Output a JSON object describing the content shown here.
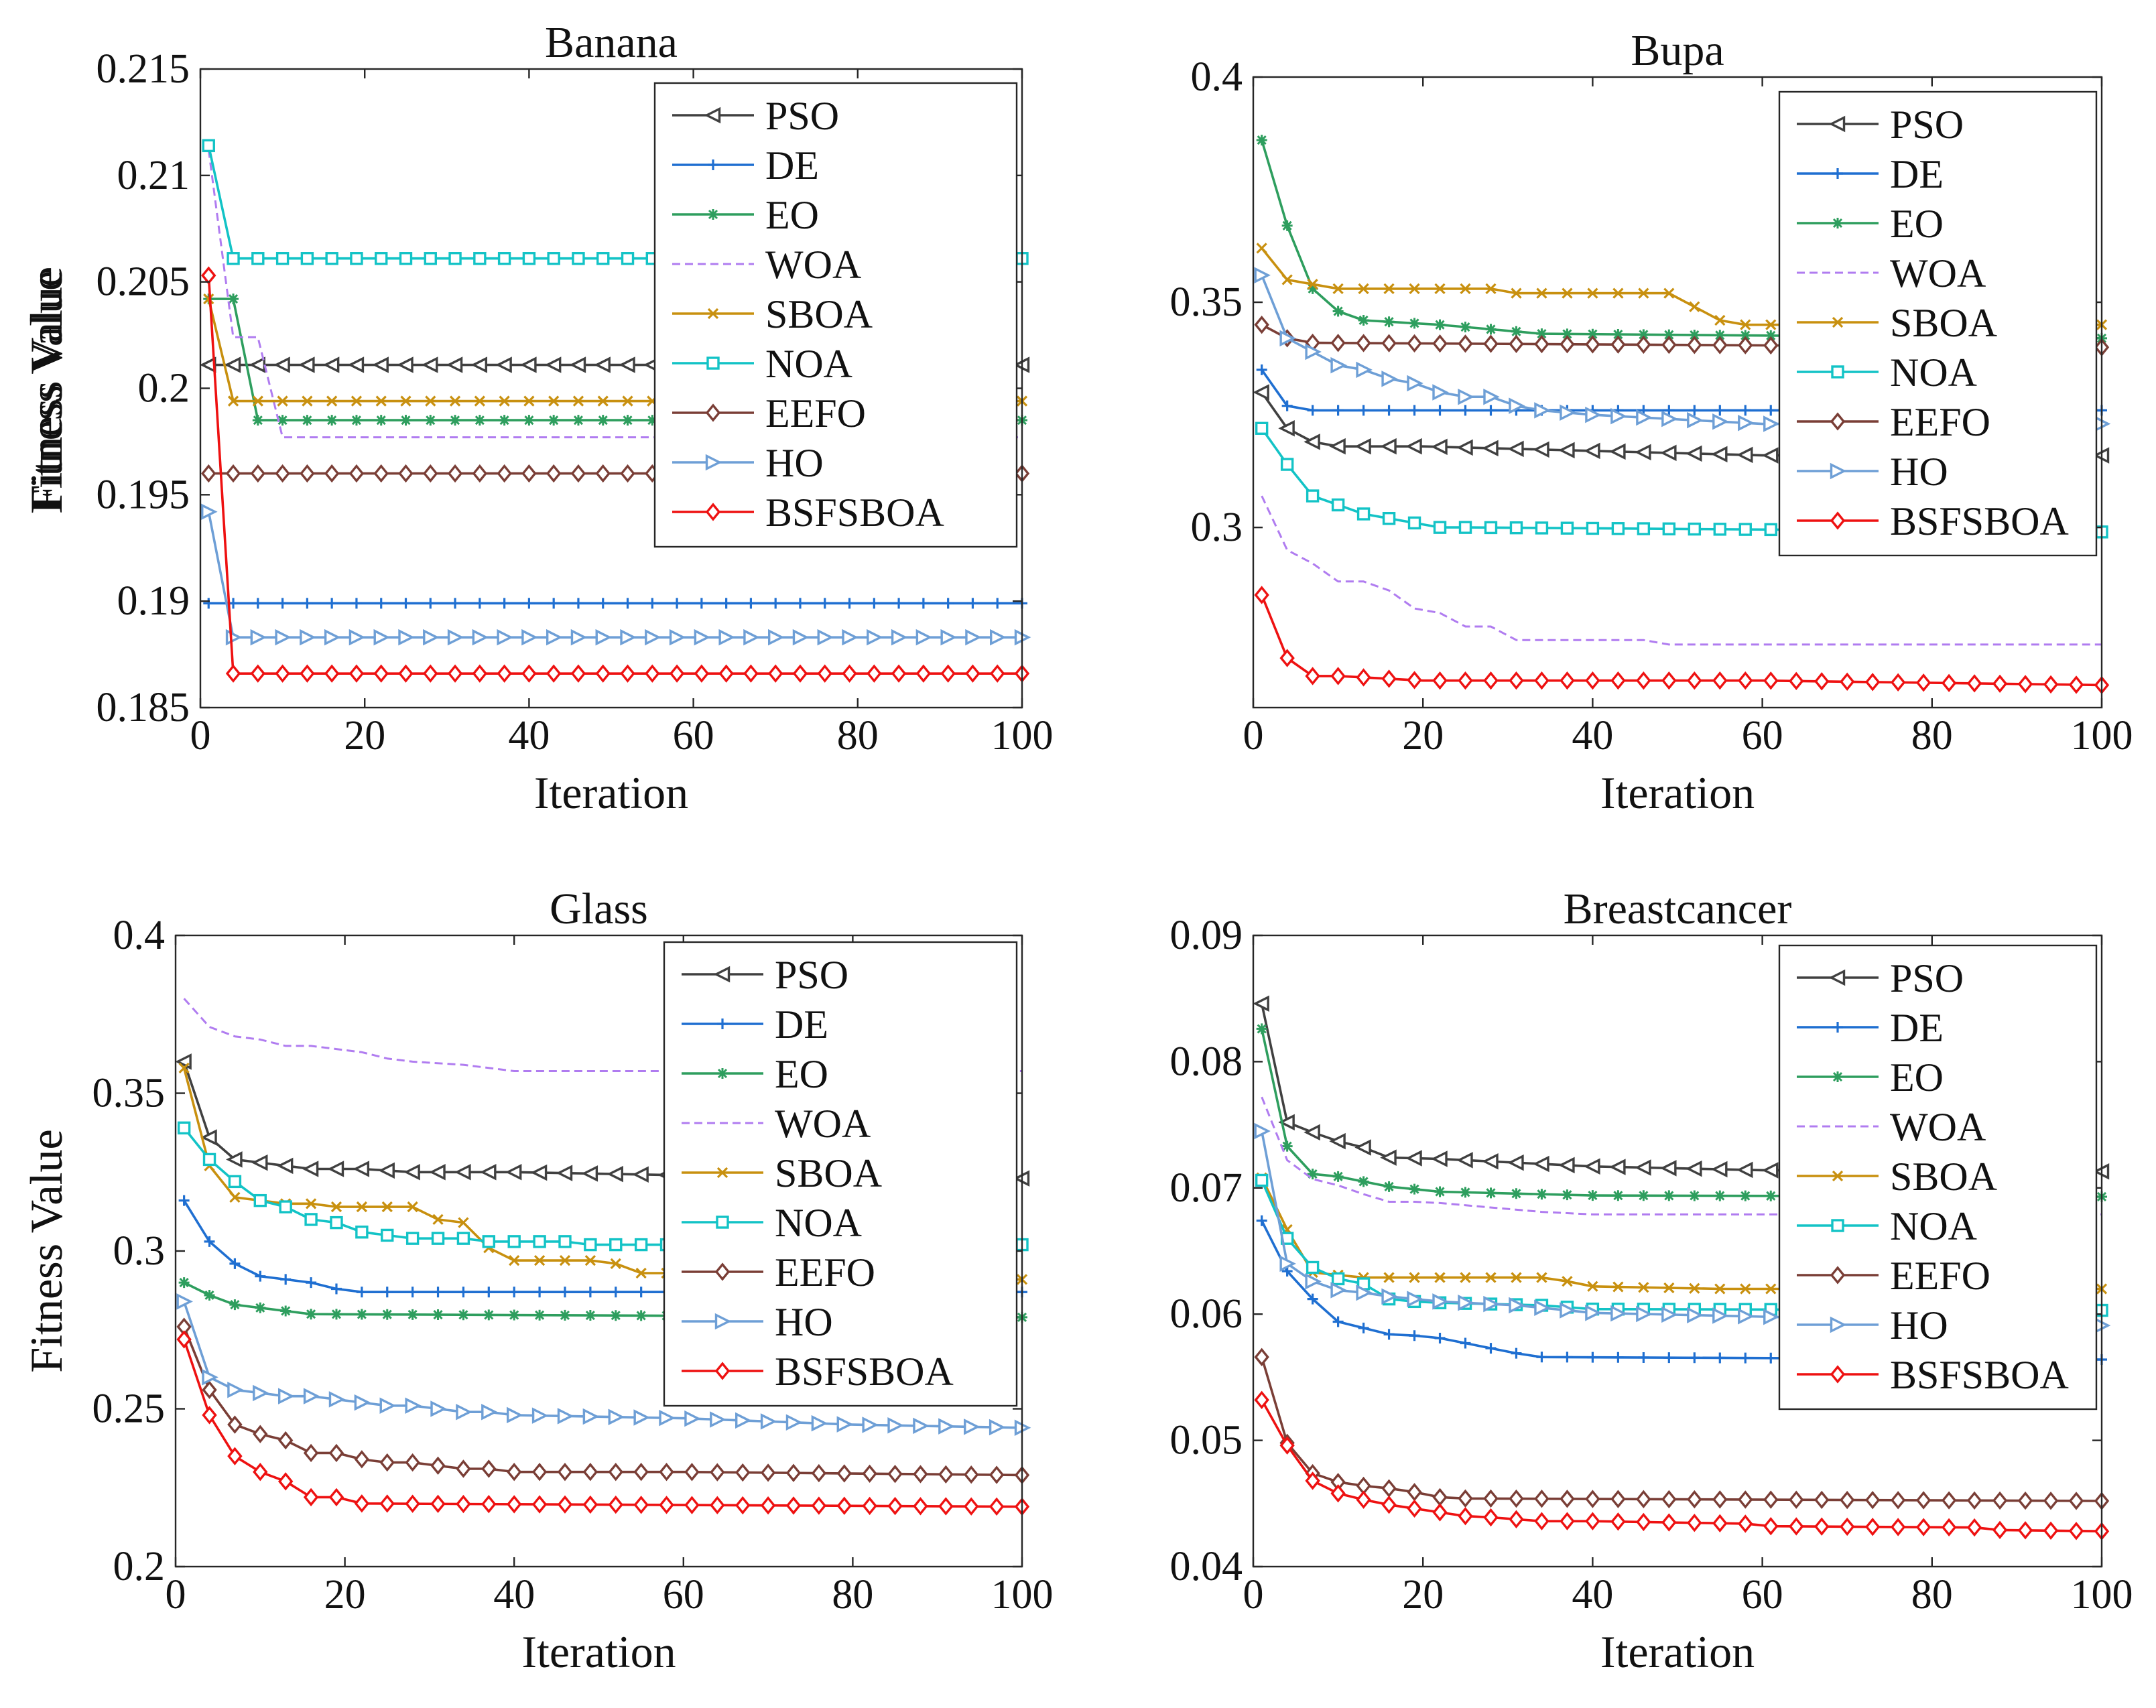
{
  "chart_data": [
    {
      "type": "line",
      "title": "Banana",
      "xlabel": "Iteration",
      "ylabel": "Fitness Value",
      "xlim": [
        0,
        100
      ],
      "ylim": [
        0.185,
        0.215
      ],
      "xticks": [
        0,
        20,
        40,
        60,
        80,
        100
      ],
      "yticks": [
        0.185,
        0.19,
        0.195,
        0.2,
        0.205,
        0.21,
        0.215
      ],
      "ytick_labels": [
        "0.185",
        "0.19",
        "0.195",
        "0.2",
        "0.205",
        "0.21",
        "0.215"
      ],
      "legend_position": "top-right",
      "series": [
        {
          "name": "PSO",
          "x": [
            1,
            4,
            100
          ],
          "y": [
            0.2011,
            0.2011,
            0.2011
          ]
        },
        {
          "name": "DE",
          "x": [
            1,
            4,
            100
          ],
          "y": [
            0.1899,
            0.1899,
            0.1899
          ]
        },
        {
          "name": "EO",
          "x": [
            1,
            4,
            7,
            100
          ],
          "y": [
            0.2042,
            0.2042,
            0.1985,
            0.1985
          ]
        },
        {
          "name": "WOA",
          "x": [
            1,
            4,
            7,
            10,
            100
          ],
          "y": [
            0.2112,
            0.2024,
            0.2024,
            0.1977,
            0.1977
          ]
        },
        {
          "name": "SBOA",
          "x": [
            1,
            4,
            100
          ],
          "y": [
            0.2042,
            0.1994,
            0.1994
          ]
        },
        {
          "name": "NOA",
          "x": [
            1,
            4,
            100
          ],
          "y": [
            0.2114,
            0.2061,
            0.2061
          ]
        },
        {
          "name": "EEFO",
          "x": [
            1,
            100
          ],
          "y": [
            0.196,
            0.196
          ]
        },
        {
          "name": "HO",
          "x": [
            1,
            4,
            100
          ],
          "y": [
            0.1942,
            0.1883,
            0.1883
          ]
        },
        {
          "name": "BSFSBOA",
          "x": [
            1,
            4,
            100
          ],
          "y": [
            0.2053,
            0.1866,
            0.1866
          ]
        }
      ]
    },
    {
      "type": "line",
      "title": "Bupa",
      "xlabel": "Iteration",
      "ylabel": "Fitness Value",
      "xlim": [
        0,
        100
      ],
      "ylim": [
        0.26,
        0.4
      ],
      "xticks": [
        0,
        20,
        40,
        60,
        80,
        100
      ],
      "yticks": [
        0.3,
        0.35,
        0.4
      ],
      "ytick_labels": [
        "0.3",
        "0.35",
        "0.4"
      ],
      "legend_position": "top-right",
      "series": [
        {
          "name": "PSO",
          "x": [
            1,
            4,
            7,
            10,
            20,
            40,
            60,
            100
          ],
          "y": [
            0.33,
            0.322,
            0.319,
            0.318,
            0.318,
            0.317,
            0.316,
            0.316
          ]
        },
        {
          "name": "DE",
          "x": [
            1,
            4,
            7,
            100
          ],
          "y": [
            0.335,
            0.327,
            0.326,
            0.326
          ]
        },
        {
          "name": "EO",
          "x": [
            1,
            4,
            7,
            10,
            13,
            22,
            34,
            100
          ],
          "y": [
            0.386,
            0.367,
            0.353,
            0.348,
            0.346,
            0.345,
            0.343,
            0.342
          ]
        },
        {
          "name": "WOA",
          "x": [
            1,
            4,
            7,
            10,
            13,
            16,
            19,
            22,
            25,
            28,
            31,
            46,
            49,
            100
          ],
          "y": [
            0.307,
            0.295,
            0.292,
            0.288,
            0.288,
            0.286,
            0.282,
            0.281,
            0.278,
            0.278,
            0.275,
            0.275,
            0.274,
            0.274
          ]
        },
        {
          "name": "SBOA",
          "x": [
            1,
            4,
            7,
            10,
            28,
            31,
            49,
            52,
            55,
            58,
            100
          ],
          "y": [
            0.362,
            0.355,
            0.354,
            0.353,
            0.353,
            0.352,
            0.352,
            0.349,
            0.346,
            0.345,
            0.345
          ]
        },
        {
          "name": "NOA",
          "x": [
            1,
            4,
            7,
            10,
            13,
            16,
            19,
            22,
            25,
            100
          ],
          "y": [
            0.322,
            0.314,
            0.307,
            0.305,
            0.303,
            0.302,
            0.301,
            0.3,
            0.3,
            0.299
          ]
        },
        {
          "name": "EEFO",
          "x": [
            1,
            4,
            7,
            100
          ],
          "y": [
            0.345,
            0.342,
            0.341,
            0.34
          ]
        },
        {
          "name": "HO",
          "x": [
            1,
            4,
            7,
            10,
            13,
            16,
            19,
            22,
            25,
            28,
            31,
            34,
            40,
            60,
            100
          ],
          "y": [
            0.356,
            0.342,
            0.339,
            0.336,
            0.335,
            0.333,
            0.332,
            0.33,
            0.329,
            0.329,
            0.327,
            0.326,
            0.325,
            0.323,
            0.323
          ]
        },
        {
          "name": "BSFSBOA",
          "x": [
            1,
            4,
            7,
            10,
            20,
            40,
            60,
            100
          ],
          "y": [
            0.285,
            0.271,
            0.267,
            0.267,
            0.266,
            0.266,
            0.266,
            0.265
          ]
        }
      ]
    },
    {
      "type": "line",
      "title": "Glass",
      "xlabel": "Iteration",
      "ylabel": "Fitness Value",
      "xlim": [
        0,
        100
      ],
      "ylim": [
        0.2,
        0.4
      ],
      "xticks": [
        0,
        20,
        40,
        60,
        80,
        100
      ],
      "yticks": [
        0.2,
        0.25,
        0.3,
        0.35,
        0.4
      ],
      "ytick_labels": [
        "0.2",
        "0.25",
        "0.3",
        "0.35",
        "0.4"
      ],
      "legend_position": "top-right",
      "series": [
        {
          "name": "PSO",
          "x": [
            1,
            4,
            7,
            10,
            13,
            16,
            22,
            28,
            40,
            60,
            100
          ],
          "y": [
            0.36,
            0.336,
            0.329,
            0.328,
            0.327,
            0.326,
            0.326,
            0.325,
            0.325,
            0.324,
            0.323
          ]
        },
        {
          "name": "DE",
          "x": [
            1,
            4,
            7,
            10,
            13,
            16,
            19,
            22,
            25,
            100
          ],
          "y": [
            0.316,
            0.303,
            0.296,
            0.292,
            0.291,
            0.29,
            0.288,
            0.287,
            0.287,
            0.287
          ]
        },
        {
          "name": "EO",
          "x": [
            1,
            4,
            7,
            10,
            13,
            16,
            100
          ],
          "y": [
            0.29,
            0.286,
            0.283,
            0.282,
            0.281,
            0.28,
            0.279
          ]
        },
        {
          "name": "WOA",
          "x": [
            1,
            4,
            7,
            10,
            13,
            16,
            19,
            22,
            25,
            28,
            34,
            40,
            100
          ],
          "y": [
            0.38,
            0.371,
            0.368,
            0.367,
            0.365,
            0.365,
            0.364,
            0.363,
            0.361,
            0.36,
            0.359,
            0.357,
            0.357
          ]
        },
        {
          "name": "SBOA",
          "x": [
            1,
            4,
            7,
            10,
            13,
            16,
            19,
            22,
            25,
            28,
            31,
            34,
            37,
            40,
            43,
            46,
            49,
            52,
            55,
            58,
            61,
            64,
            67,
            70,
            100
          ],
          "y": [
            0.358,
            0.327,
            0.317,
            0.316,
            0.315,
            0.315,
            0.314,
            0.314,
            0.314,
            0.314,
            0.31,
            0.309,
            0.301,
            0.297,
            0.297,
            0.297,
            0.297,
            0.296,
            0.293,
            0.293,
            0.292,
            0.292,
            0.291,
            0.291,
            0.291
          ]
        },
        {
          "name": "NOA",
          "x": [
            1,
            4,
            7,
            10,
            13,
            16,
            19,
            22,
            25,
            28,
            31,
            34,
            37,
            40,
            43,
            46,
            49,
            52,
            55,
            58,
            100
          ],
          "y": [
            0.339,
            0.329,
            0.322,
            0.316,
            0.314,
            0.31,
            0.309,
            0.306,
            0.305,
            0.304,
            0.304,
            0.304,
            0.303,
            0.303,
            0.303,
            0.303,
            0.302,
            0.302,
            0.302,
            0.302,
            0.302
          ]
        },
        {
          "name": "EEFO",
          "x": [
            1,
            4,
            7,
            10,
            13,
            16,
            19,
            22,
            25,
            28,
            31,
            34,
            37,
            40,
            60,
            100
          ],
          "y": [
            0.276,
            0.256,
            0.245,
            0.242,
            0.24,
            0.236,
            0.236,
            0.234,
            0.233,
            0.233,
            0.232,
            0.231,
            0.231,
            0.23,
            0.23,
            0.229
          ]
        },
        {
          "name": "HO",
          "x": [
            1,
            4,
            7,
            10,
            13,
            16,
            19,
            22,
            25,
            28,
            31,
            34,
            37,
            40,
            60,
            80,
            100
          ],
          "y": [
            0.284,
            0.26,
            0.256,
            0.255,
            0.254,
            0.254,
            0.253,
            0.252,
            0.251,
            0.251,
            0.25,
            0.249,
            0.249,
            0.248,
            0.247,
            0.245,
            0.244
          ]
        },
        {
          "name": "BSFSBOA",
          "x": [
            1,
            4,
            7,
            10,
            13,
            16,
            19,
            22,
            100
          ],
          "y": [
            0.272,
            0.248,
            0.235,
            0.23,
            0.227,
            0.222,
            0.222,
            0.22,
            0.219
          ]
        }
      ]
    },
    {
      "type": "line",
      "title": "Breastcancer",
      "xlabel": "Iteration",
      "ylabel": "Fitness Value",
      "xlim": [
        0,
        100
      ],
      "ylim": [
        0.04,
        0.09
      ],
      "xticks": [
        0,
        20,
        40,
        60,
        80,
        100
      ],
      "yticks": [
        0.04,
        0.05,
        0.06,
        0.07,
        0.08,
        0.09
      ],
      "ytick_labels": [
        "0.04",
        "0.05",
        "0.06",
        "0.07",
        "0.08",
        "0.09"
      ],
      "legend_position": "top-right",
      "series": [
        {
          "name": "PSO",
          "x": [
            1,
            4,
            7,
            10,
            13,
            16,
            22,
            40,
            60,
            100
          ],
          "y": [
            0.0846,
            0.0752,
            0.0744,
            0.0737,
            0.0732,
            0.0724,
            0.0723,
            0.0717,
            0.0714,
            0.0713
          ]
        },
        {
          "name": "DE",
          "x": [
            1,
            4,
            7,
            10,
            13,
            16,
            19,
            22,
            25,
            28,
            31,
            34,
            100
          ],
          "y": [
            0.0674,
            0.0634,
            0.0612,
            0.0594,
            0.0589,
            0.0584,
            0.0583,
            0.0581,
            0.0577,
            0.0573,
            0.0569,
            0.0566,
            0.0564
          ]
        },
        {
          "name": "EO",
          "x": [
            1,
            4,
            7,
            10,
            13,
            16,
            19,
            22,
            40,
            100
          ],
          "y": [
            0.0826,
            0.0733,
            0.0711,
            0.0709,
            0.0705,
            0.0701,
            0.0699,
            0.0697,
            0.0694,
            0.0693
          ]
        },
        {
          "name": "WOA",
          "x": [
            1,
            4,
            7,
            10,
            13,
            16,
            19,
            22,
            34,
            40,
            100
          ],
          "y": [
            0.0772,
            0.0722,
            0.0707,
            0.0702,
            0.0695,
            0.0689,
            0.0689,
            0.0688,
            0.0681,
            0.0679,
            0.0679
          ]
        },
        {
          "name": "SBOA",
          "x": [
            1,
            4,
            7,
            10,
            13,
            34,
            37,
            40,
            55,
            100
          ],
          "y": [
            0.0708,
            0.0667,
            0.0633,
            0.0631,
            0.0629,
            0.0629,
            0.0626,
            0.0622,
            0.062,
            0.062
          ]
        },
        {
          "name": "NOA",
          "x": [
            1,
            4,
            7,
            10,
            13,
            16,
            19,
            22,
            34,
            40,
            100
          ],
          "y": [
            0.0706,
            0.066,
            0.0637,
            0.0628,
            0.0624,
            0.0612,
            0.061,
            0.0609,
            0.0607,
            0.0604,
            0.0603
          ]
        },
        {
          "name": "EEFO",
          "x": [
            1,
            4,
            7,
            10,
            13,
            16,
            19,
            22,
            25,
            100
          ],
          "y": [
            0.0566,
            0.0498,
            0.0474,
            0.0467,
            0.0464,
            0.0462,
            0.0459,
            0.0455,
            0.0454,
            0.0452
          ]
        },
        {
          "name": "HO",
          "x": [
            1,
            4,
            7,
            10,
            13,
            16,
            19,
            22,
            31,
            40,
            60,
            100
          ],
          "y": [
            0.0745,
            0.064,
            0.0626,
            0.0619,
            0.0617,
            0.0614,
            0.0612,
            0.061,
            0.0607,
            0.0601,
            0.0598,
            0.0591
          ]
        },
        {
          "name": "BSFSBOA",
          "x": [
            1,
            4,
            7,
            10,
            13,
            16,
            19,
            22,
            25,
            28,
            34,
            40,
            58,
            61,
            85,
            88,
            100
          ],
          "y": [
            0.0532,
            0.0496,
            0.0468,
            0.0458,
            0.0453,
            0.0449,
            0.0446,
            0.0443,
            0.044,
            0.0439,
            0.0436,
            0.0436,
            0.0434,
            0.0432,
            0.0431,
            0.0429,
            0.0428
          ]
        }
      ]
    }
  ],
  "series_styles": {
    "PSO": {
      "color": "#404040",
      "marker": "triangle-left",
      "dash": "solid"
    },
    "DE": {
      "color": "#1f6fd1",
      "marker": "plus",
      "dash": "solid"
    },
    "EO": {
      "color": "#2e9e5e",
      "marker": "asterisk",
      "dash": "solid"
    },
    "WOA": {
      "color": "#b07cf0",
      "marker": "none",
      "dash": "dashed"
    },
    "SBOA": {
      "color": "#c8900f",
      "marker": "x",
      "dash": "solid"
    },
    "NOA": {
      "color": "#13c3c6",
      "marker": "square",
      "dash": "solid"
    },
    "EEFO": {
      "color": "#7a3e36",
      "marker": "diamond",
      "dash": "solid"
    },
    "HO": {
      "color": "#6e9fd6",
      "marker": "triangle-right",
      "dash": "solid"
    },
    "BSFSBOA": {
      "color": "#ee1111",
      "marker": "diamond",
      "dash": "solid"
    }
  }
}
